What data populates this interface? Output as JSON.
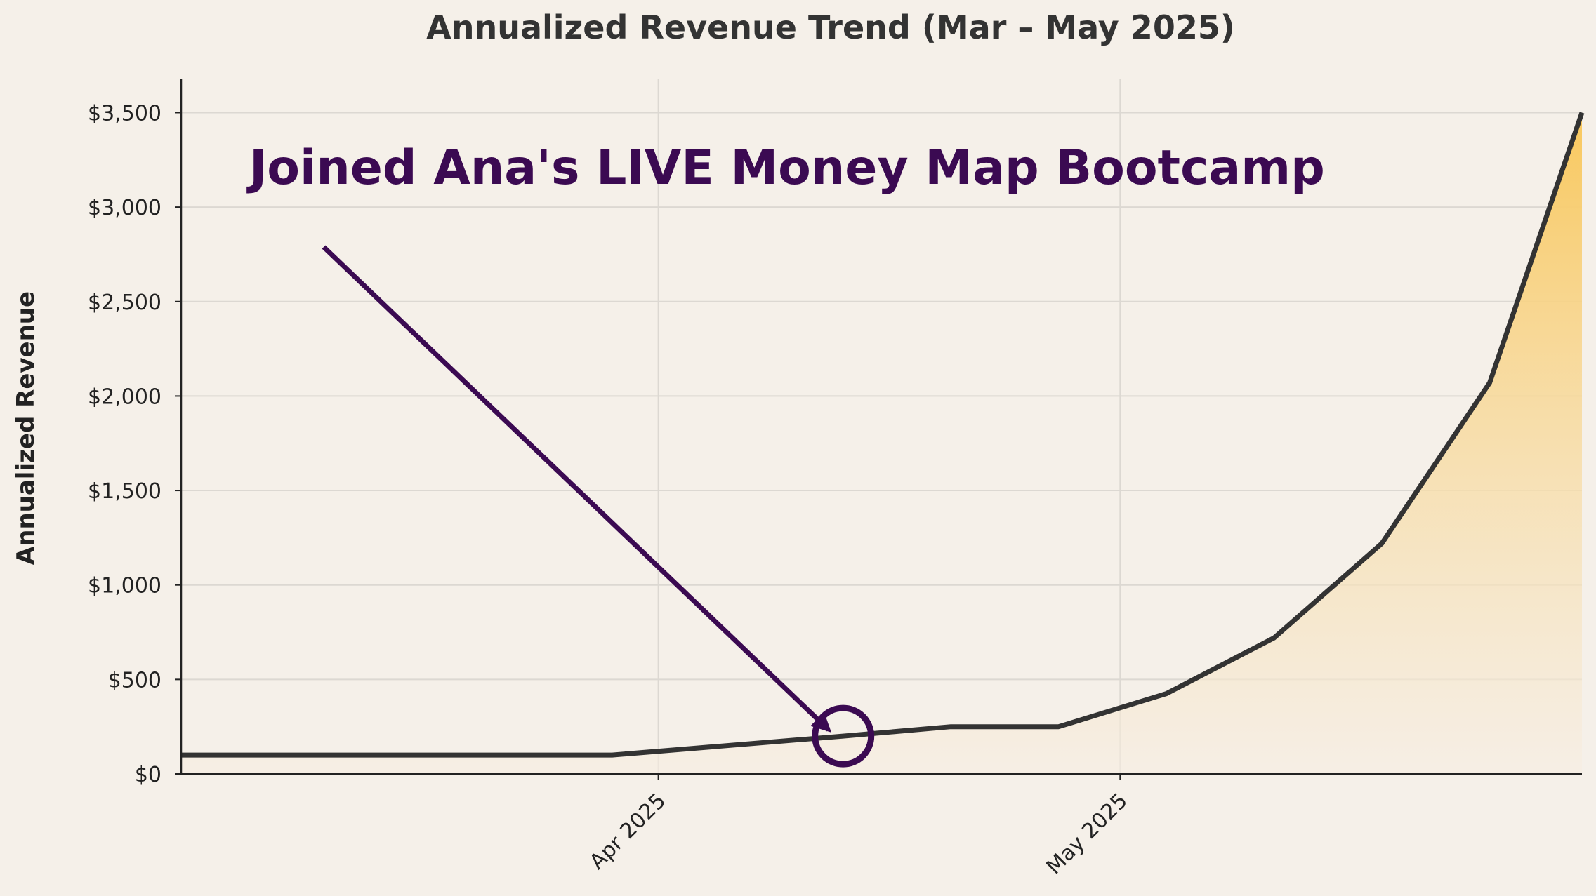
{
  "chart_data": {
    "type": "area",
    "title": "Annualized Revenue Trend (Mar – May 2025)",
    "ylabel": "Annualized Revenue",
    "xlabel": "",
    "x_range": [
      "2025-03-01",
      "2025-05-31"
    ],
    "ylim": [
      0,
      3680
    ],
    "grid": true,
    "x_ticks": [
      {
        "date": "2025-04-01",
        "label": "Apr 2025"
      },
      {
        "date": "2025-05-01",
        "label": "May 2025"
      }
    ],
    "y_ticks": [
      {
        "value": 0,
        "label": "$0"
      },
      {
        "value": 500,
        "label": "$500"
      },
      {
        "value": 1000,
        "label": "$1,000"
      },
      {
        "value": 1500,
        "label": "$1,500"
      },
      {
        "value": 2000,
        "label": "$2,000"
      },
      {
        "value": 2500,
        "label": "$2,500"
      },
      {
        "value": 3000,
        "label": "$3,000"
      },
      {
        "value": 3500,
        "label": "$3,500"
      }
    ],
    "series": [
      {
        "points": [
          {
            "x": "2025-03-01",
            "y": 100
          },
          {
            "x": "2025-03-29",
            "y": 100
          },
          {
            "x": "2025-04-13",
            "y": 200
          },
          {
            "x": "2025-04-20",
            "y": 250
          },
          {
            "x": "2025-04-27",
            "y": 250
          },
          {
            "x": "2025-05-04",
            "y": 425
          },
          {
            "x": "2025-05-11",
            "y": 720
          },
          {
            "x": "2025-05-18",
            "y": 1220
          },
          {
            "x": "2025-05-25",
            "y": 2070
          },
          {
            "x": "2025-05-31",
            "y": 3500
          }
        ]
      }
    ],
    "annotation": {
      "text": "Joined Ana's LIVE Money Map Bootcamp",
      "marker": {
        "x": "2025-04-13",
        "y": 200
      }
    },
    "colors": {
      "background": "#f5f0e9",
      "line": "#333333",
      "fill_top": "#f9c85d",
      "fill_bottom": "#f6ede2",
      "annotation": "#3b0a52",
      "grid": "#dcd8d2",
      "text": "#222222"
    }
  }
}
